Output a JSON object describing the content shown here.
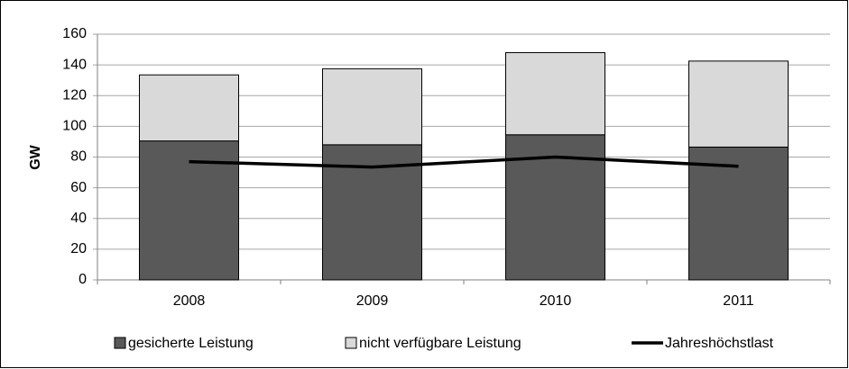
{
  "chart_data": {
    "type": "bar",
    "stacked": true,
    "y_label": "GW",
    "categories": [
      "2008",
      "2009",
      "2010",
      "2011"
    ],
    "series": [
      {
        "name": "gesicherte Leistung",
        "type": "bar",
        "color": "#595959",
        "values": [
          90.5,
          88,
          94.5,
          86.5
        ]
      },
      {
        "name": "nicht verfügbare Leistung",
        "type": "bar",
        "color": "#d9d9d9",
        "values": [
          43,
          49.5,
          53.5,
          56
        ]
      },
      {
        "name": "Jahreshöchstlast",
        "type": "line",
        "color": "#000000",
        "values": [
          77,
          73.5,
          80,
          74
        ]
      }
    ],
    "ylim": [
      0,
      160
    ],
    "yticks": [
      0,
      20,
      40,
      60,
      80,
      100,
      120,
      140,
      160
    ],
    "grid": true,
    "legend": "bottom"
  }
}
